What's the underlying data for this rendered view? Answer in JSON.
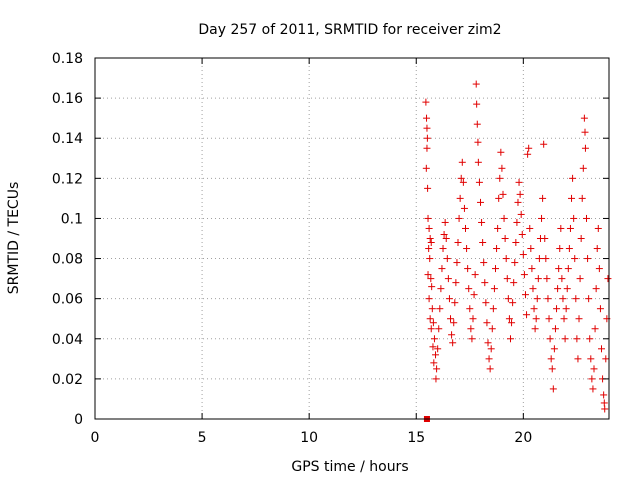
{
  "chart_data": {
    "type": "scatter",
    "title": "Day 257 of 2011, SRMTID for receiver zim2",
    "xlabel": "GPS time / hours",
    "ylabel": "SRMTID / TECUs",
    "xlim": [
      0,
      24
    ],
    "ylim": [
      0,
      0.18
    ],
    "xticks": [
      0,
      5,
      10,
      15,
      20
    ],
    "xtick_labels": [
      "0",
      "5",
      "10",
      "15",
      "20"
    ],
    "yticks": [
      0,
      0.02,
      0.04,
      0.06,
      0.08,
      0.1,
      0.12,
      0.14,
      0.16,
      0.18
    ],
    "ytick_labels": [
      "0",
      "0.02",
      "0.04",
      "0.06",
      "0.08",
      "0.1",
      "0.12",
      "0.14",
      "0.16",
      "0.18"
    ],
    "grid": true,
    "marker": "+",
    "marker_color": "#e00000",
    "outlier_marker": "square",
    "outlier_point": {
      "x": 15.5,
      "y": 0.0
    },
    "series": [
      {
        "name": "SRMTID",
        "points": [
          [
            15.45,
            0.158
          ],
          [
            15.48,
            0.15
          ],
          [
            15.5,
            0.145
          ],
          [
            15.52,
            0.14
          ],
          [
            15.5,
            0.135
          ],
          [
            15.47,
            0.125
          ],
          [
            15.53,
            0.115
          ],
          [
            15.55,
            0.1
          ],
          [
            15.6,
            0.095
          ],
          [
            15.65,
            0.09
          ],
          [
            15.7,
            0.088
          ],
          [
            15.58,
            0.085
          ],
          [
            15.63,
            0.08
          ],
          [
            15.55,
            0.072
          ],
          [
            15.68,
            0.07
          ],
          [
            15.72,
            0.066
          ],
          [
            15.6,
            0.06
          ],
          [
            15.75,
            0.055
          ],
          [
            15.65,
            0.05
          ],
          [
            15.8,
            0.048
          ],
          [
            15.7,
            0.045
          ],
          [
            15.85,
            0.04
          ],
          [
            15.78,
            0.036
          ],
          [
            15.9,
            0.032
          ],
          [
            15.82,
            0.028
          ],
          [
            15.95,
            0.025
          ],
          [
            15.92,
            0.02
          ],
          [
            16.0,
            0.035
          ],
          [
            16.05,
            0.045
          ],
          [
            16.1,
            0.055
          ],
          [
            16.15,
            0.065
          ],
          [
            16.2,
            0.075
          ],
          [
            16.25,
            0.085
          ],
          [
            16.3,
            0.092
          ],
          [
            16.35,
            0.098
          ],
          [
            16.4,
            0.09
          ],
          [
            16.45,
            0.08
          ],
          [
            16.5,
            0.07
          ],
          [
            16.55,
            0.06
          ],
          [
            16.6,
            0.05
          ],
          [
            16.65,
            0.042
          ],
          [
            16.7,
            0.038
          ],
          [
            16.75,
            0.048
          ],
          [
            16.8,
            0.058
          ],
          [
            16.85,
            0.068
          ],
          [
            16.9,
            0.078
          ],
          [
            16.95,
            0.088
          ],
          [
            17.0,
            0.1
          ],
          [
            17.05,
            0.11
          ],
          [
            17.1,
            0.12
          ],
          [
            17.15,
            0.128
          ],
          [
            17.2,
            0.118
          ],
          [
            17.25,
            0.105
          ],
          [
            17.3,
            0.095
          ],
          [
            17.35,
            0.085
          ],
          [
            17.4,
            0.075
          ],
          [
            17.45,
            0.065
          ],
          [
            17.5,
            0.055
          ],
          [
            17.55,
            0.045
          ],
          [
            17.6,
            0.04
          ],
          [
            17.65,
            0.05
          ],
          [
            17.7,
            0.062
          ],
          [
            17.75,
            0.072
          ],
          [
            17.8,
            0.167
          ],
          [
            17.82,
            0.157
          ],
          [
            17.85,
            0.147
          ],
          [
            17.88,
            0.138
          ],
          [
            17.9,
            0.128
          ],
          [
            17.95,
            0.118
          ],
          [
            18.0,
            0.108
          ],
          [
            18.05,
            0.098
          ],
          [
            18.1,
            0.088
          ],
          [
            18.15,
            0.078
          ],
          [
            18.2,
            0.068
          ],
          [
            18.25,
            0.058
          ],
          [
            18.3,
            0.048
          ],
          [
            18.35,
            0.038
          ],
          [
            18.4,
            0.03
          ],
          [
            18.45,
            0.025
          ],
          [
            18.5,
            0.035
          ],
          [
            18.55,
            0.045
          ],
          [
            18.6,
            0.055
          ],
          [
            18.65,
            0.065
          ],
          [
            18.7,
            0.075
          ],
          [
            18.75,
            0.085
          ],
          [
            18.8,
            0.095
          ],
          [
            18.85,
            0.11
          ],
          [
            18.9,
            0.12
          ],
          [
            18.95,
            0.133
          ],
          [
            19.0,
            0.125
          ],
          [
            19.05,
            0.112
          ],
          [
            19.1,
            0.1
          ],
          [
            19.15,
            0.09
          ],
          [
            19.2,
            0.08
          ],
          [
            19.25,
            0.07
          ],
          [
            19.3,
            0.06
          ],
          [
            19.35,
            0.05
          ],
          [
            19.4,
            0.04
          ],
          [
            19.45,
            0.048
          ],
          [
            19.5,
            0.058
          ],
          [
            19.55,
            0.068
          ],
          [
            19.6,
            0.078
          ],
          [
            19.65,
            0.088
          ],
          [
            19.7,
            0.098
          ],
          [
            19.75,
            0.108
          ],
          [
            19.8,
            0.118
          ],
          [
            19.85,
            0.112
          ],
          [
            19.9,
            0.102
          ],
          [
            19.95,
            0.092
          ],
          [
            20.0,
            0.082
          ],
          [
            20.05,
            0.072
          ],
          [
            20.1,
            0.062
          ],
          [
            20.15,
            0.052
          ],
          [
            20.2,
            0.132
          ],
          [
            20.25,
            0.135
          ],
          [
            20.3,
            0.095
          ],
          [
            20.35,
            0.085
          ],
          [
            20.4,
            0.075
          ],
          [
            20.45,
            0.065
          ],
          [
            20.5,
            0.055
          ],
          [
            20.55,
            0.045
          ],
          [
            20.6,
            0.05
          ],
          [
            20.65,
            0.06
          ],
          [
            20.7,
            0.07
          ],
          [
            20.75,
            0.08
          ],
          [
            20.8,
            0.09
          ],
          [
            20.85,
            0.1
          ],
          [
            20.9,
            0.11
          ],
          [
            20.95,
            0.137
          ],
          [
            21.0,
            0.09
          ],
          [
            21.05,
            0.08
          ],
          [
            21.1,
            0.07
          ],
          [
            21.15,
            0.06
          ],
          [
            21.2,
            0.05
          ],
          [
            21.25,
            0.04
          ],
          [
            21.3,
            0.03
          ],
          [
            21.35,
            0.025
          ],
          [
            21.4,
            0.015
          ],
          [
            21.45,
            0.035
          ],
          [
            21.5,
            0.045
          ],
          [
            21.55,
            0.055
          ],
          [
            21.6,
            0.065
          ],
          [
            21.65,
            0.075
          ],
          [
            21.7,
            0.085
          ],
          [
            21.75,
            0.095
          ],
          [
            21.8,
            0.07
          ],
          [
            21.85,
            0.06
          ],
          [
            21.9,
            0.05
          ],
          [
            21.95,
            0.04
          ],
          [
            22.0,
            0.055
          ],
          [
            22.05,
            0.065
          ],
          [
            22.1,
            0.075
          ],
          [
            22.15,
            0.085
          ],
          [
            22.2,
            0.095
          ],
          [
            22.25,
            0.11
          ],
          [
            22.3,
            0.12
          ],
          [
            22.35,
            0.1
          ],
          [
            22.4,
            0.08
          ],
          [
            22.45,
            0.06
          ],
          [
            22.5,
            0.04
          ],
          [
            22.55,
            0.03
          ],
          [
            22.6,
            0.05
          ],
          [
            22.65,
            0.07
          ],
          [
            22.7,
            0.09
          ],
          [
            22.75,
            0.11
          ],
          [
            22.8,
            0.125
          ],
          [
            22.85,
            0.15
          ],
          [
            22.88,
            0.143
          ],
          [
            22.9,
            0.135
          ],
          [
            22.95,
            0.1
          ],
          [
            23.0,
            0.08
          ],
          [
            23.05,
            0.06
          ],
          [
            23.1,
            0.04
          ],
          [
            23.15,
            0.03
          ],
          [
            23.2,
            0.02
          ],
          [
            23.25,
            0.015
          ],
          [
            23.3,
            0.025
          ],
          [
            23.35,
            0.045
          ],
          [
            23.4,
            0.065
          ],
          [
            23.45,
            0.085
          ],
          [
            23.5,
            0.095
          ],
          [
            23.55,
            0.075
          ],
          [
            23.6,
            0.055
          ],
          [
            23.65,
            0.035
          ],
          [
            23.7,
            0.02
          ],
          [
            23.75,
            0.012
          ],
          [
            23.78,
            0.008
          ],
          [
            23.8,
            0.005
          ],
          [
            23.85,
            0.03
          ],
          [
            23.9,
            0.05
          ],
          [
            23.95,
            0.07
          ]
        ]
      }
    ]
  }
}
